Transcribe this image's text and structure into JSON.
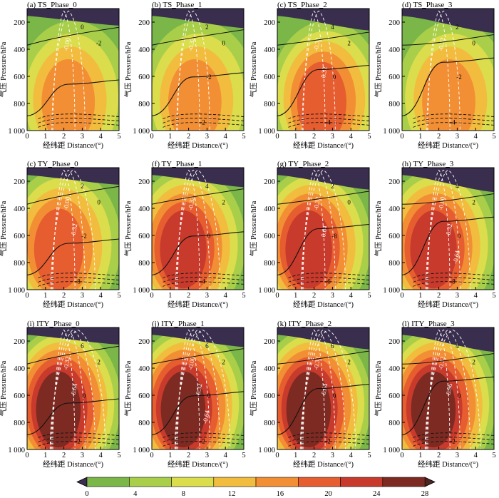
{
  "chart_data": {
    "type": "heatmap",
    "description_fields": "multi-panel pressure-distance cross-sections, shaded field with black and white contour overlays",
    "xlabel": "经纬距 Distance/(°)",
    "ylabel": "气压 Pressure/hPa",
    "xlim": [
      0,
      5
    ],
    "ylim": [
      1000,
      100
    ],
    "xticks": [
      "0",
      "1",
      "2",
      "3",
      "4",
      "5"
    ],
    "yticks": [
      "200",
      "400",
      "600",
      "800",
      "1 000"
    ],
    "colorbar": {
      "levels": [
        0,
        4,
        8,
        12,
        16,
        20,
        24,
        28
      ],
      "tick_labels": [
        "0",
        "4",
        "8",
        "12",
        "16",
        "20",
        "24",
        "28"
      ],
      "colors": [
        "#7ab648",
        "#a9cf4a",
        "#dbdd4c",
        "#f2bd3e",
        "#f28f34",
        "#e65d30",
        "#c73a2c",
        "#7d2a22"
      ],
      "under_color": "#3a2e4f",
      "over_color": "#4a2521",
      "extend": "both"
    },
    "panels": [
      {
        "label": "(a) TS_Phase_0",
        "group": "TS",
        "phase": 0,
        "peak_shade": 16,
        "black_contours": [
          "0",
          "-2"
        ],
        "white_contours": [
          "-0.00"
        ]
      },
      {
        "label": "(b) TS_Phase_1",
        "group": "TS",
        "phase": 1,
        "peak_shade": 16,
        "black_contours": [
          "2",
          "0",
          "-2",
          "-2"
        ],
        "white_contours": [
          "-0.32"
        ]
      },
      {
        "label": "(c) TS_Phase_2",
        "group": "TS",
        "phase": 2,
        "peak_shade": 20,
        "black_contours": [
          "4",
          "2",
          "0",
          "-4"
        ],
        "white_contours": [
          "-0.32",
          "0.32"
        ]
      },
      {
        "label": "(d) TS_Phase_3",
        "group": "TS",
        "phase": 3,
        "peak_shade": 16,
        "black_contours": [
          "2",
          "0",
          "-2",
          "-4"
        ],
        "white_contours": [
          "-0.32"
        ]
      },
      {
        "label": "(c) TY_Phase_0",
        "group": "TY",
        "phase": 0,
        "peak_shade": 20,
        "black_contours": [
          "2",
          "0",
          "-2",
          "-8"
        ],
        "white_contours": [
          "-0.00",
          "-0.32"
        ]
      },
      {
        "label": "(f) TY_Phase_1",
        "group": "TY",
        "phase": 1,
        "peak_shade": 24,
        "black_contours": [
          "4",
          "2",
          "0",
          "-4"
        ],
        "white_contours": [
          "-0.32"
        ]
      },
      {
        "label": "(g) TY_Phase_2",
        "group": "TY",
        "phase": 2,
        "peak_shade": 24,
        "black_contours": [
          "2",
          "0",
          "-8",
          "-6"
        ],
        "white_contours": [
          "-0.32",
          "0.64"
        ]
      },
      {
        "label": "(h) TY_Phase_3",
        "group": "TY",
        "phase": 3,
        "peak_shade": 24,
        "black_contours": [
          "4",
          "2",
          "0",
          "-8"
        ],
        "white_contours": [
          "-0.00",
          "-0.32",
          "-0.64"
        ]
      },
      {
        "label": "(i) ITY_Phase_0",
        "group": "ITY",
        "phase": 0,
        "peak_shade": 28,
        "black_contours": [
          "6",
          "2",
          "0",
          "-2"
        ],
        "white_contours": [
          "-0.32",
          "-0.64"
        ]
      },
      {
        "label": "(j) ITY_Phase_1",
        "group": "ITY",
        "phase": 1,
        "peak_shade": 28,
        "black_contours": [
          "6",
          "2",
          "0",
          "-2"
        ],
        "white_contours": [
          "-0.00",
          "-0.32",
          "-0.64"
        ]
      },
      {
        "label": "(k) ITY_Phase_2",
        "group": "ITY",
        "phase": 2,
        "peak_shade": 28,
        "black_contours": [
          "6",
          "2",
          "0",
          "-2"
        ],
        "white_contours": [
          "-0.32",
          "-0.64"
        ]
      },
      {
        "label": "(l) ITY_Phase_3",
        "group": "ITY",
        "phase": 3,
        "peak_shade": 28,
        "black_contours": [
          "4",
          "2",
          "0",
          "-2"
        ],
        "white_contours": [
          "-0.32",
          "-0.96"
        ]
      }
    ]
  }
}
